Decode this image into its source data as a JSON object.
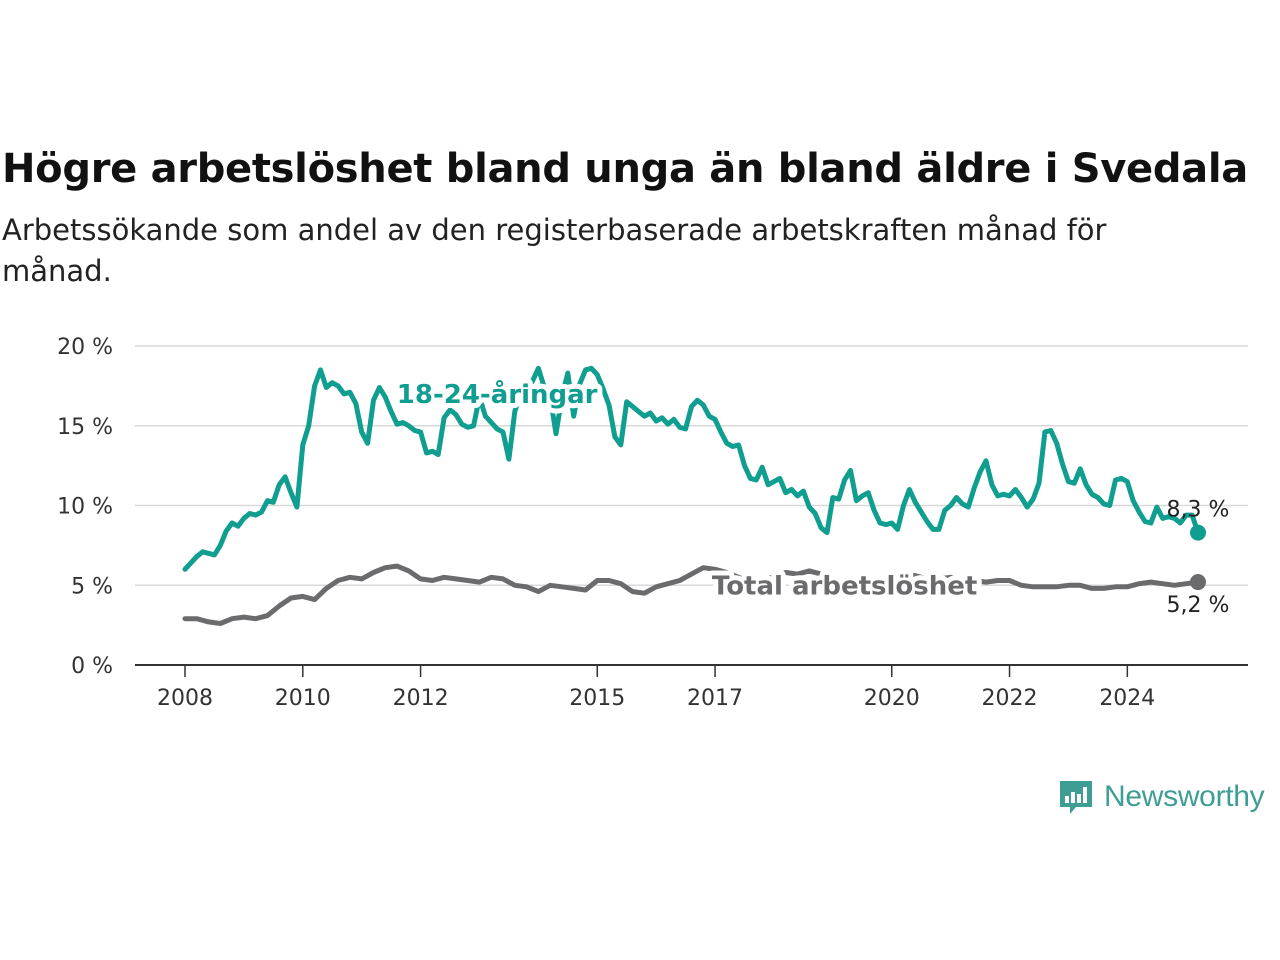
{
  "header": {
    "title": "Högre arbetslöshet bland unga än bland äldre i Svedala",
    "subtitle": "Arbetssökande som andel av den registerbaserade arbetskraften månad för månad."
  },
  "brand": {
    "name": "Newsworthy",
    "logo_icon": "bar-chart-speech-bubble-icon",
    "color": "#3f9e94"
  },
  "chart_data": {
    "type": "line",
    "title": "Högre arbetslöshet bland unga än bland äldre i Svedala",
    "subtitle": "Arbetssökande som andel av den registerbaserade arbetskraften månad för månad.",
    "xlabel": "",
    "ylabel": "",
    "x_range": [
      2008,
      2025.2
    ],
    "ylim": [
      0,
      20
    ],
    "y_ticks": [
      0,
      5,
      10,
      15,
      20
    ],
    "y_tick_labels": [
      "0 %",
      "5 %",
      "10 %",
      "15 %",
      "20 %"
    ],
    "x_ticks": [
      2008,
      2010,
      2012,
      2015,
      2017,
      2020,
      2022,
      2024
    ],
    "x_tick_labels": [
      "2008",
      "2010",
      "2012",
      "2015",
      "2017",
      "2020",
      "2022",
      "2024"
    ],
    "grid": "horizontal",
    "legend": "none",
    "series": [
      {
        "name": "18-24-åringar",
        "color": "#0f9e8f",
        "label_at": [
          2013.3,
          17.0
        ],
        "end_label": "8,3 %",
        "points": [
          [
            2008.0,
            6.0
          ],
          [
            2008.2,
            6.8
          ],
          [
            2008.3,
            7.1
          ],
          [
            2008.5,
            6.9
          ],
          [
            2008.6,
            7.5
          ],
          [
            2008.7,
            8.4
          ],
          [
            2008.8,
            8.9
          ],
          [
            2008.9,
            8.7
          ],
          [
            2009.0,
            9.2
          ],
          [
            2009.1,
            9.5
          ],
          [
            2009.2,
            9.4
          ],
          [
            2009.3,
            9.6
          ],
          [
            2009.4,
            10.3
          ],
          [
            2009.5,
            10.2
          ],
          [
            2009.6,
            11.3
          ],
          [
            2009.7,
            11.8
          ],
          [
            2009.8,
            10.8
          ],
          [
            2009.9,
            9.9
          ],
          [
            2010.0,
            13.8
          ],
          [
            2010.1,
            15.0
          ],
          [
            2010.2,
            17.5
          ],
          [
            2010.3,
            18.5
          ],
          [
            2010.4,
            17.4
          ],
          [
            2010.5,
            17.7
          ],
          [
            2010.6,
            17.5
          ],
          [
            2010.7,
            17.0
          ],
          [
            2010.8,
            17.1
          ],
          [
            2010.9,
            16.4
          ],
          [
            2011.0,
            14.6
          ],
          [
            2011.1,
            13.9
          ],
          [
            2011.2,
            16.6
          ],
          [
            2011.3,
            17.4
          ],
          [
            2011.4,
            16.8
          ],
          [
            2011.5,
            15.9
          ],
          [
            2011.6,
            15.1
          ],
          [
            2011.7,
            15.2
          ],
          [
            2011.8,
            15.0
          ],
          [
            2011.9,
            14.7
          ],
          [
            2012.0,
            14.6
          ],
          [
            2012.1,
            13.3
          ],
          [
            2012.2,
            13.4
          ],
          [
            2012.3,
            13.2
          ],
          [
            2012.4,
            15.5
          ],
          [
            2012.5,
            16.0
          ],
          [
            2012.6,
            15.7
          ],
          [
            2012.7,
            15.1
          ],
          [
            2012.8,
            14.9
          ],
          [
            2012.9,
            15.0
          ],
          [
            2013.0,
            16.8
          ],
          [
            2013.1,
            15.6
          ],
          [
            2013.2,
            15.2
          ],
          [
            2013.3,
            14.8
          ],
          [
            2013.4,
            14.6
          ],
          [
            2013.5,
            12.9
          ],
          [
            2013.6,
            15.9
          ],
          [
            2013.7,
            17.0
          ],
          [
            2013.8,
            17.3
          ],
          [
            2013.9,
            17.8
          ],
          [
            2014.0,
            18.6
          ],
          [
            2014.1,
            17.4
          ],
          [
            2014.2,
            16.8
          ],
          [
            2014.3,
            14.5
          ],
          [
            2014.4,
            16.8
          ],
          [
            2014.5,
            18.3
          ],
          [
            2014.6,
            15.6
          ],
          [
            2014.7,
            17.6
          ],
          [
            2014.8,
            18.5
          ],
          [
            2014.9,
            18.6
          ],
          [
            2015.0,
            18.2
          ],
          [
            2015.1,
            17.3
          ],
          [
            2015.2,
            16.3
          ],
          [
            2015.3,
            14.3
          ],
          [
            2015.4,
            13.8
          ],
          [
            2015.5,
            16.5
          ],
          [
            2015.6,
            16.2
          ],
          [
            2015.7,
            15.9
          ],
          [
            2015.8,
            15.6
          ],
          [
            2015.9,
            15.8
          ],
          [
            2016.0,
            15.3
          ],
          [
            2016.1,
            15.5
          ],
          [
            2016.2,
            15.1
          ],
          [
            2016.3,
            15.4
          ],
          [
            2016.4,
            14.9
          ],
          [
            2016.5,
            14.8
          ],
          [
            2016.6,
            16.2
          ],
          [
            2016.7,
            16.6
          ],
          [
            2016.8,
            16.3
          ],
          [
            2016.9,
            15.6
          ],
          [
            2017.0,
            15.4
          ],
          [
            2017.1,
            14.6
          ],
          [
            2017.2,
            13.9
          ],
          [
            2017.3,
            13.7
          ],
          [
            2017.4,
            13.8
          ],
          [
            2017.5,
            12.5
          ],
          [
            2017.6,
            11.7
          ],
          [
            2017.7,
            11.6
          ],
          [
            2017.8,
            12.4
          ],
          [
            2017.9,
            11.3
          ],
          [
            2018.0,
            11.5
          ],
          [
            2018.1,
            11.7
          ],
          [
            2018.2,
            10.8
          ],
          [
            2018.3,
            11.0
          ],
          [
            2018.4,
            10.6
          ],
          [
            2018.5,
            10.9
          ],
          [
            2018.6,
            9.9
          ],
          [
            2018.7,
            9.5
          ],
          [
            2018.8,
            8.6
          ],
          [
            2018.9,
            8.3
          ],
          [
            2019.0,
            10.5
          ],
          [
            2019.1,
            10.4
          ],
          [
            2019.2,
            11.6
          ],
          [
            2019.3,
            12.2
          ],
          [
            2019.4,
            10.3
          ],
          [
            2019.5,
            10.6
          ],
          [
            2019.6,
            10.8
          ],
          [
            2019.7,
            9.7
          ],
          [
            2019.8,
            8.9
          ],
          [
            2019.9,
            8.8
          ],
          [
            2020.0,
            8.9
          ],
          [
            2020.1,
            8.5
          ],
          [
            2020.2,
            10.0
          ],
          [
            2020.3,
            11.0
          ],
          [
            2020.4,
            10.2
          ],
          [
            2020.5,
            9.6
          ],
          [
            2020.6,
            9.0
          ],
          [
            2020.7,
            8.5
          ],
          [
            2020.8,
            8.5
          ],
          [
            2020.9,
            9.7
          ],
          [
            2021.0,
            10.0
          ],
          [
            2021.1,
            10.5
          ],
          [
            2021.2,
            10.1
          ],
          [
            2021.3,
            9.9
          ],
          [
            2021.4,
            11.1
          ],
          [
            2021.5,
            12.1
          ],
          [
            2021.6,
            12.8
          ],
          [
            2021.7,
            11.3
          ],
          [
            2021.8,
            10.6
          ],
          [
            2021.9,
            10.7
          ],
          [
            2022.0,
            10.6
          ],
          [
            2022.1,
            11.0
          ],
          [
            2022.2,
            10.5
          ],
          [
            2022.3,
            9.9
          ],
          [
            2022.4,
            10.4
          ],
          [
            2022.5,
            11.4
          ],
          [
            2022.6,
            14.6
          ],
          [
            2022.7,
            14.7
          ],
          [
            2022.8,
            13.9
          ],
          [
            2022.9,
            12.6
          ],
          [
            2023.0,
            11.5
          ],
          [
            2023.1,
            11.4
          ],
          [
            2023.2,
            12.3
          ],
          [
            2023.3,
            11.3
          ],
          [
            2023.4,
            10.7
          ],
          [
            2023.5,
            10.5
          ],
          [
            2023.6,
            10.1
          ],
          [
            2023.7,
            10.0
          ],
          [
            2023.8,
            11.6
          ],
          [
            2023.9,
            11.7
          ],
          [
            2024.0,
            11.5
          ],
          [
            2024.1,
            10.3
          ],
          [
            2024.2,
            9.6
          ],
          [
            2024.3,
            9.0
          ],
          [
            2024.4,
            8.9
          ],
          [
            2024.5,
            9.9
          ],
          [
            2024.6,
            9.2
          ],
          [
            2024.7,
            9.3
          ],
          [
            2024.8,
            9.2
          ],
          [
            2024.9,
            8.9
          ],
          [
            2025.0,
            9.4
          ],
          [
            2025.1,
            9.4
          ],
          [
            2025.2,
            8.3
          ]
        ]
      },
      {
        "name": "Total arbetslöshet",
        "color": "#6b6b6e",
        "label_at": [
          2019.2,
          5.0
        ],
        "end_label": "5,2 %",
        "points": [
          [
            2008.0,
            2.9
          ],
          [
            2008.2,
            2.9
          ],
          [
            2008.4,
            2.7
          ],
          [
            2008.6,
            2.6
          ],
          [
            2008.8,
            2.9
          ],
          [
            2009.0,
            3.0
          ],
          [
            2009.2,
            2.9
          ],
          [
            2009.4,
            3.1
          ],
          [
            2009.6,
            3.7
          ],
          [
            2009.8,
            4.2
          ],
          [
            2010.0,
            4.3
          ],
          [
            2010.2,
            4.1
          ],
          [
            2010.4,
            4.8
          ],
          [
            2010.6,
            5.3
          ],
          [
            2010.8,
            5.5
          ],
          [
            2011.0,
            5.4
          ],
          [
            2011.2,
            5.8
          ],
          [
            2011.4,
            6.1
          ],
          [
            2011.6,
            6.2
          ],
          [
            2011.8,
            5.9
          ],
          [
            2012.0,
            5.4
          ],
          [
            2012.2,
            5.3
          ],
          [
            2012.4,
            5.5
          ],
          [
            2012.6,
            5.4
          ],
          [
            2012.8,
            5.3
          ],
          [
            2013.0,
            5.2
          ],
          [
            2013.2,
            5.5
          ],
          [
            2013.4,
            5.4
          ],
          [
            2013.6,
            5.0
          ],
          [
            2013.8,
            4.9
          ],
          [
            2014.0,
            4.6
          ],
          [
            2014.2,
            5.0
          ],
          [
            2014.4,
            4.9
          ],
          [
            2014.6,
            4.8
          ],
          [
            2014.8,
            4.7
          ],
          [
            2015.0,
            5.3
          ],
          [
            2015.2,
            5.3
          ],
          [
            2015.4,
            5.1
          ],
          [
            2015.6,
            4.6
          ],
          [
            2015.8,
            4.5
          ],
          [
            2016.0,
            4.9
          ],
          [
            2016.2,
            5.1
          ],
          [
            2016.4,
            5.3
          ],
          [
            2016.6,
            5.7
          ],
          [
            2016.8,
            6.1
          ],
          [
            2017.0,
            6.0
          ],
          [
            2017.2,
            5.8
          ],
          [
            2017.4,
            5.5
          ],
          [
            2017.6,
            5.2
          ],
          [
            2017.8,
            5.4
          ],
          [
            2018.0,
            5.5
          ],
          [
            2018.2,
            5.8
          ],
          [
            2018.4,
            5.7
          ],
          [
            2018.6,
            5.9
          ],
          [
            2018.8,
            5.7
          ],
          [
            2019.0,
            5.3
          ],
          [
            2019.2,
            4.9
          ],
          [
            2019.4,
            5.1
          ],
          [
            2019.6,
            5.4
          ],
          [
            2019.8,
            5.3
          ],
          [
            2020.0,
            5.5
          ],
          [
            2020.2,
            5.7
          ],
          [
            2020.4,
            5.6
          ],
          [
            2020.6,
            5.4
          ],
          [
            2020.8,
            5.4
          ],
          [
            2021.0,
            5.5
          ],
          [
            2021.2,
            5.3
          ],
          [
            2021.4,
            5.3
          ],
          [
            2021.6,
            5.2
          ],
          [
            2021.8,
            5.3
          ],
          [
            2022.0,
            5.3
          ],
          [
            2022.2,
            5.0
          ],
          [
            2022.4,
            4.9
          ],
          [
            2022.6,
            4.9
          ],
          [
            2022.8,
            4.9
          ],
          [
            2023.0,
            5.0
          ],
          [
            2023.2,
            5.0
          ],
          [
            2023.4,
            4.8
          ],
          [
            2023.6,
            4.8
          ],
          [
            2023.8,
            4.9
          ],
          [
            2024.0,
            4.9
          ],
          [
            2024.2,
            5.1
          ],
          [
            2024.4,
            5.2
          ],
          [
            2024.6,
            5.1
          ],
          [
            2024.8,
            5.0
          ],
          [
            2025.0,
            5.1
          ],
          [
            2025.2,
            5.2
          ]
        ]
      }
    ]
  }
}
